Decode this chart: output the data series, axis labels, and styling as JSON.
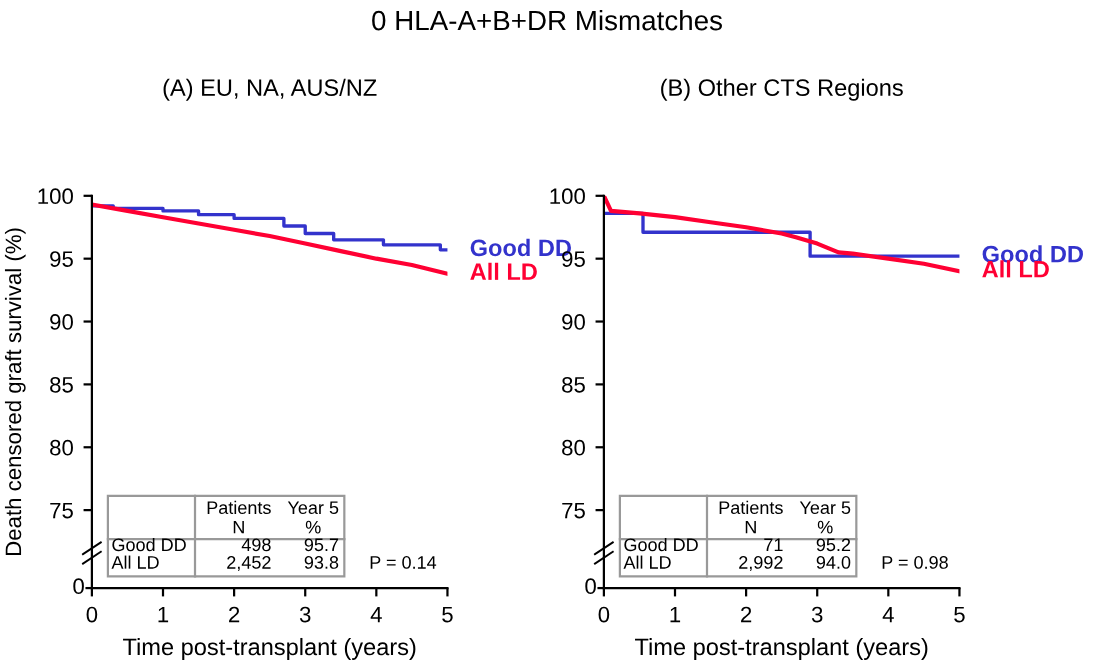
{
  "chart_data": [
    {
      "type": "step",
      "title": "0 HLA-A+B+DR Mismatches",
      "subtitle": "(A) EU, NA, AUS/NZ",
      "xlabel": "Time post-transplant (years)",
      "ylabel": "Death censored graft survival (%)",
      "xlim": [
        0,
        5
      ],
      "xticks": [
        0,
        1,
        2,
        3,
        4,
        5
      ],
      "ylim": [
        68.8,
        100
      ],
      "yticks": [
        75,
        80,
        85,
        90,
        95,
        100
      ],
      "grid": false,
      "legend": false,
      "series": [
        {
          "name": "Good DD",
          "color": "#3333cc",
          "x": [
            0,
            0.3,
            1.0,
            1.5,
            2.0,
            2.7,
            3.0,
            3.4,
            4.1,
            4.9,
            5
          ],
          "values": [
            99.2,
            99.0,
            98.8,
            98.5,
            98.2,
            97.6,
            97.0,
            96.5,
            96.1,
            95.7,
            95.7
          ]
        },
        {
          "name": "All LD",
          "type": "line",
          "color": "#ff0033",
          "x": [
            0,
            0.5,
            1,
            1.5,
            2,
            2.5,
            3,
            3.5,
            4,
            4.5,
            5
          ],
          "values": [
            99.3,
            98.8,
            98.3,
            97.8,
            97.3,
            96.8,
            96.2,
            95.6,
            95.0,
            94.5,
            93.8
          ]
        }
      ],
      "annotations": [
        "Patients\nN",
        "Year 5\n%",
        "Good DD",
        "498",
        "95.7",
        "All LD",
        "2,452",
        "93.8",
        "P = 0.14",
        "0"
      ]
    },
    {
      "type": "step",
      "subtitle": "(B) Other CTS Regions",
      "xlabel": "Time post-transplant (years)",
      "xlim": [
        0,
        5
      ],
      "xticks": [
        0,
        1,
        2,
        3,
        4,
        5
      ],
      "ylim": [
        68.8,
        100
      ],
      "yticks": [
        75,
        80,
        85,
        90,
        95,
        100
      ],
      "grid": false,
      "legend": false,
      "series": [
        {
          "name": "Good DD",
          "color": "#3333cc",
          "x": [
            0,
            0.55,
            2.9,
            5
          ],
          "values": [
            98.6,
            97.1,
            95.2,
            95.2
          ]
        },
        {
          "name": "All LD",
          "type": "line",
          "color": "#ff0033",
          "x": [
            0,
            0.1,
            0.5,
            1,
            1.5,
            2,
            2.5,
            2.7,
            3,
            3.3,
            3.5,
            4,
            4.5,
            5
          ],
          "values": [
            100,
            98.8,
            98.6,
            98.3,
            97.9,
            97.5,
            97.0,
            96.7,
            96.2,
            95.5,
            95.4,
            95.0,
            94.6,
            94.0
          ]
        }
      ],
      "annotations": [
        "Patients\nN",
        "Year 5\n%",
        "Good DD",
        "71",
        "95.2",
        "All LD",
        "2,992",
        "94.0",
        "P = 0.98",
        "0"
      ]
    }
  ]
}
